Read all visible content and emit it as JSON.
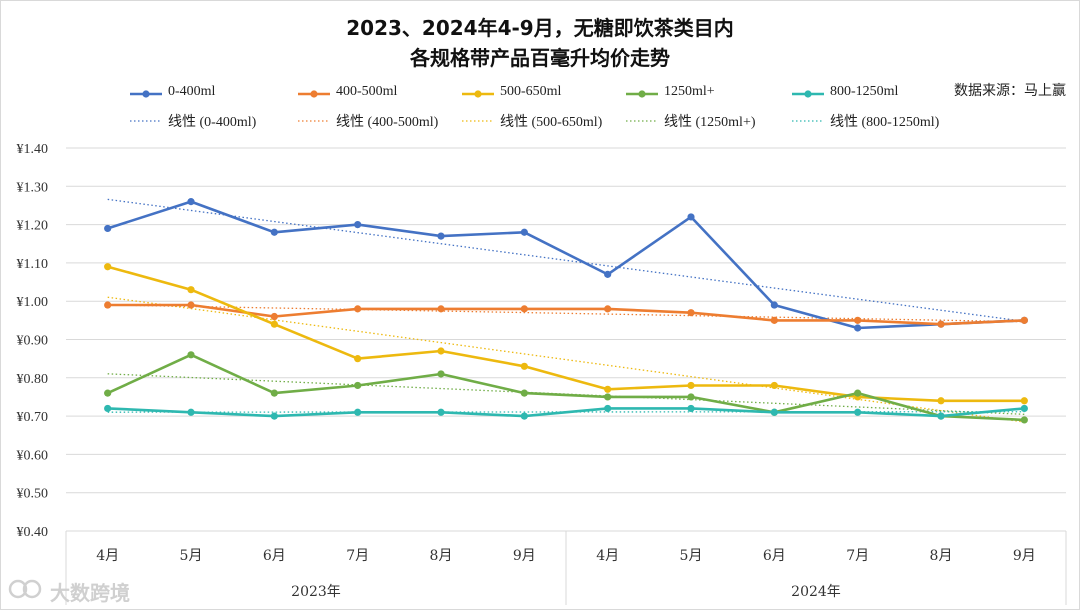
{
  "chart_data": {
    "type": "line",
    "title_line1": "2023、2024年4-9月，无糖即饮茶类目内",
    "title_line2": "各规格带产品百毫升均价走势",
    "source": "数据来源：马上赢",
    "month_labels": [
      "4月",
      "5月",
      "6月",
      "7月",
      "8月",
      "9月",
      "4月",
      "5月",
      "6月",
      "7月",
      "8月",
      "9月"
    ],
    "year_labels": [
      "2023年",
      "2024年"
    ],
    "ylim": [
      0.4,
      1.4
    ],
    "yticks": [
      "¥0.40",
      "¥0.50",
      "¥0.60",
      "¥0.70",
      "¥0.80",
      "¥0.90",
      "¥1.00",
      "¥1.10",
      "¥1.20",
      "¥1.30",
      "¥1.40"
    ],
    "ytick_values": [
      0.4,
      0.5,
      0.6,
      0.7,
      0.8,
      0.9,
      1.0,
      1.1,
      1.2,
      1.3,
      1.4
    ],
    "series": [
      {
        "name": "0-400ml",
        "trend_name": "线性 (0-400ml)",
        "color": "#4472C4",
        "values": [
          1.19,
          1.26,
          1.18,
          1.2,
          1.17,
          1.18,
          1.07,
          1.22,
          0.99,
          0.93,
          0.94,
          0.95
        ]
      },
      {
        "name": "400-500ml",
        "trend_name": "线性 (400-500ml)",
        "color": "#ED7D31",
        "values": [
          0.99,
          0.99,
          0.96,
          0.98,
          0.98,
          0.98,
          0.98,
          0.97,
          0.95,
          0.95,
          0.94,
          0.95
        ]
      },
      {
        "name": "500-650ml",
        "trend_name": "线性 (500-650ml)",
        "color": "#EDB90F",
        "values": [
          1.09,
          1.03,
          0.94,
          0.85,
          0.87,
          0.83,
          0.77,
          0.78,
          0.78,
          0.75,
          0.74,
          0.74
        ]
      },
      {
        "name": "1250ml+",
        "trend_name": "线性 (1250ml+)",
        "color": "#70AD47",
        "values": [
          0.76,
          0.86,
          0.76,
          0.78,
          0.81,
          0.76,
          0.75,
          0.75,
          0.71,
          0.76,
          0.7,
          0.69
        ]
      },
      {
        "name": "800-1250ml",
        "trend_name": "线性 (800-1250ml)",
        "color": "#2EB8B0",
        "values": [
          0.72,
          0.71,
          0.7,
          0.71,
          0.71,
          0.7,
          0.72,
          0.72,
          0.71,
          0.71,
          0.7,
          0.72
        ]
      }
    ]
  },
  "watermark": "大数跨境"
}
